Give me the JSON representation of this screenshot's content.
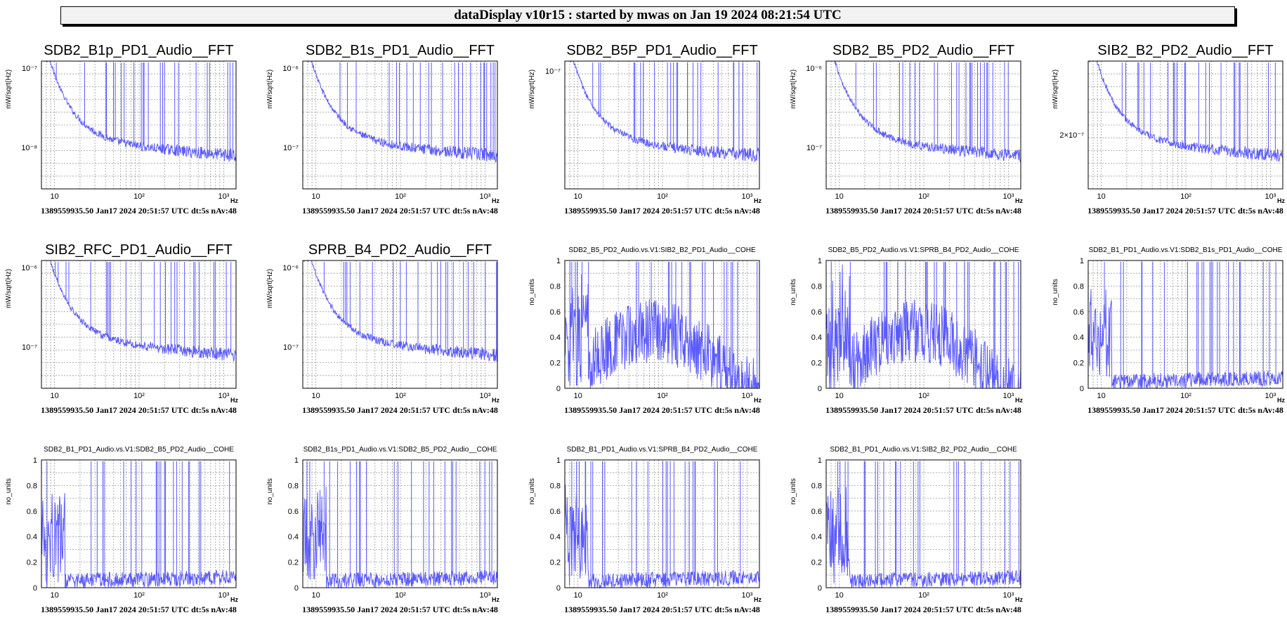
{
  "window": {
    "title": "dataDisplay v10r15 : started by mwas on Jan 19 2024 08:21:54 UTC"
  },
  "colors": {
    "trace": "#5a5aff",
    "grid": "#9a9a9a",
    "frame": "#000000",
    "title_bar_bg": "#f2f2f2"
  },
  "panels": [
    {
      "title": "SDB2_B1p_PD1_Audio__FFT",
      "kind": "fft",
      "ylabel": "mW/sqrt(Hz)",
      "yticks": [
        "10⁻⁷",
        "10⁻⁸"
      ],
      "footer": "1389559935.50 Jan17 2024 20:51:57 UTC dt:5s nAv:48"
    },
    {
      "title": "SDB2_B1s_PD1_Audio__FFT",
      "kind": "fft",
      "ylabel": "mW/sqrt(Hz)",
      "yticks": [
        "10⁻⁶",
        "10⁻⁷"
      ],
      "footer": "1389559935.50 Jan17 2024 20:51:57 UTC dt:5s nAv:48"
    },
    {
      "title": "SDB2_B5P_PD1_Audio__FFT",
      "kind": "fft",
      "ylabel": "mW/sqrt(Hz)",
      "yticks": [
        "10⁻⁷"
      ],
      "footer": "1389559935.50 Jan17 2024 20:51:57 UTC dt:5s nAv:48"
    },
    {
      "title": "SDB2_B5_PD2_Audio__FFT",
      "kind": "fft",
      "ylabel": "mW/sqrt(Hz)",
      "yticks": [
        "10⁻⁶",
        "10⁻⁷"
      ],
      "footer": "1389559935.50 Jan17 2024 20:51:57 UTC dt:5s nAv:48"
    },
    {
      "title": "SIB2_B2_PD2_Audio__FFT",
      "kind": "fft",
      "ylabel": "mW/sqrt(Hz)",
      "yticks": [
        "2×10⁻⁷"
      ],
      "footer": "1389559935.50 Jan17 2024 20:51:57 UTC dt:5s nAv:48"
    },
    {
      "title": "SIB2_RFC_PD1_Audio__FFT",
      "kind": "fft",
      "ylabel": "mW/sqrt(Hz)",
      "yticks": [
        "10⁻⁶",
        "10⁻⁷"
      ],
      "footer": "1389559935.50 Jan17 2024 20:51:57 UTC dt:5s nAv:48"
    },
    {
      "title": "SPRB_B4_PD2_Audio__FFT",
      "kind": "fft",
      "ylabel": "mW/sqrt(Hz)",
      "yticks": [
        "10⁻⁶",
        "10⁻⁷"
      ],
      "footer": "1389559935.50 Jan17 2024 20:51:57 UTC dt:5s nAv:48"
    },
    {
      "title": "SDB2_B5_PD2_Audio.vs.V1:SIB2_B2_PD1_Audio__COHE",
      "kind": "cohe",
      "ylabel": "no_units",
      "yticks": [
        "1",
        "0.8",
        "0.6",
        "0.4",
        "0.2",
        "0"
      ],
      "footer": "1389559935.50 Jan17 2024 20:51:57 UTC dt:5s nAv:48"
    },
    {
      "title": "SDB2_B5_PD2_Audio.vs.V1:SPRB_B4_PD2_Audio__COHE",
      "kind": "cohe",
      "ylabel": "no_units",
      "yticks": [
        "1",
        "0.8",
        "0.6",
        "0.4",
        "0.2",
        "0"
      ],
      "footer": "1389559935.50 Jan17 2024 20:51:57 UTC dt:5s nAv:48"
    },
    {
      "title": "SDB2_B1_PD1_Audio.vs.V1:SDB2_B1s_PD1_Audio__COHE",
      "kind": "cohe",
      "ylabel": "no_units",
      "yticks": [
        "1",
        "0.8",
        "0.6",
        "0.4",
        "0.2",
        "0"
      ],
      "footer": "1389559935.50 Jan17 2024 20:51:57 UTC dt:5s nAv:48"
    },
    {
      "title": "SDB2_B1_PD1_Audio.vs.V1:SDB2_B5_PD2_Audio__COHE",
      "kind": "cohe",
      "ylabel": "no_units",
      "yticks": [
        "1",
        "0.8",
        "0.6",
        "0.4",
        "0.2",
        "0"
      ],
      "footer": "1389559935.50 Jan17 2024 20:51:57 UTC dt:5s nAv:48"
    },
    {
      "title": "SDB2_B1s_PD1_Audio.vs.V1:SDB2_B5_PD2_Audio__COHE",
      "kind": "cohe",
      "ylabel": "no_units",
      "yticks": [
        "1",
        "0.8",
        "0.6",
        "0.4",
        "0.2",
        "0"
      ],
      "footer": "1389559935.50 Jan17 2024 20:51:57 UTC dt:5s nAv:48"
    },
    {
      "title": "SDB2_B1_PD1_Audio.vs.V1:SPRB_B4_PD2_Audio__COHE",
      "kind": "cohe",
      "ylabel": "no_units",
      "yticks": [
        "1",
        "0.8",
        "0.6",
        "0.4",
        "0.2",
        "0"
      ],
      "footer": "1389559935.50 Jan17 2024 20:51:57 UTC dt:5s nAv:48"
    },
    {
      "title": "SDB2_B1_PD1_Audio.vs.V1:SIB2_B2_PD2_Audio__COHE",
      "kind": "cohe",
      "ylabel": "no_units",
      "yticks": [
        "1",
        "0.8",
        "0.6",
        "0.4",
        "0.2",
        "0"
      ],
      "footer": "1389559935.50 Jan17 2024 20:51:57 UTC dt:5s nAv:48"
    }
  ],
  "x_axis": {
    "tick_labels": [
      "10",
      "10²",
      "10³"
    ],
    "unit": "Hz"
  }
}
